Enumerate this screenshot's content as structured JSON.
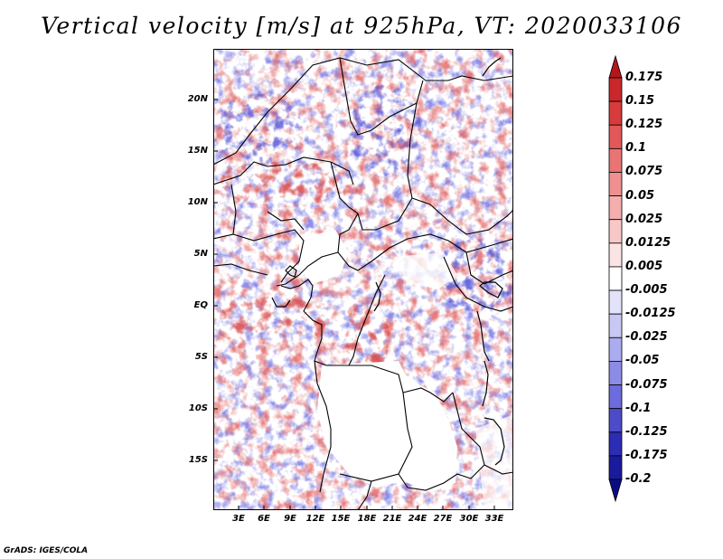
{
  "title": "Vertical velocity [m/s] at 925hPa, VT: 2020033106",
  "credit": "GrADS: IGES/COLA",
  "map": {
    "lat_labels": [
      "20N",
      "15N",
      "10N",
      "5N",
      "EQ",
      "5S",
      "10S",
      "15S"
    ],
    "lon_labels": [
      "3E",
      "6E",
      "9E",
      "12E",
      "15E",
      "18E",
      "21E",
      "24E",
      "27E",
      "30E",
      "33E"
    ],
    "positive_color": "#c81e1e",
    "negative_color": "#3c3cd2"
  },
  "colorbar": {
    "labels": [
      "0.175",
      "0.15",
      "0.125",
      "0.1",
      "0.075",
      "0.05",
      "0.025",
      "0.0125",
      "0.005",
      "-0.005",
      "-0.0125",
      "-0.025",
      "-0.05",
      "-0.075",
      "-0.1",
      "-0.125",
      "-0.175",
      "-0.2"
    ],
    "colors": [
      "#b4161b",
      "#c8282a",
      "#d83b3b",
      "#e25858",
      "#e87474",
      "#ee9090",
      "#f4aeae",
      "#f8c8c8",
      "#fce4e4",
      "#ffffff",
      "#e2e2fa",
      "#c8c8f4",
      "#ababef",
      "#8c8ce6",
      "#6c6cdc",
      "#4c4cc8",
      "#2c2cb4",
      "#1a1a9c",
      "#0c0c82"
    ]
  }
}
